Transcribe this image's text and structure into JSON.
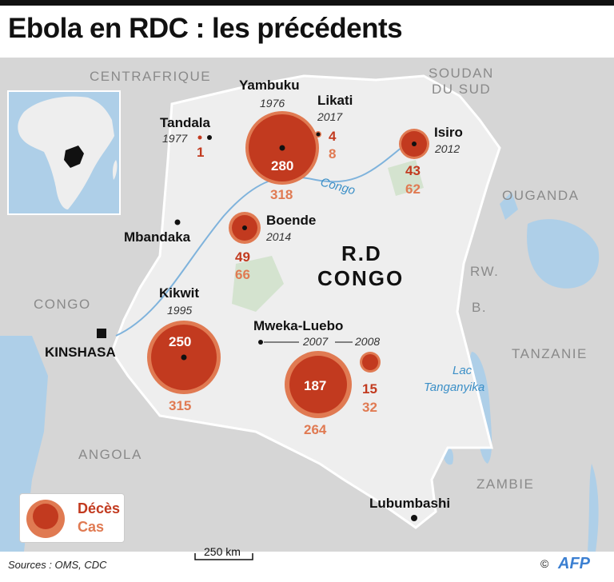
{
  "title": "Ebola en RDC : les précédents",
  "countries": {
    "centrafrique": "CENTRAFRIQUE",
    "soudan_1": "SOUDAN",
    "soudan_2": "DU SUD",
    "ouganda": "OUGANDA",
    "rw": "RW.",
    "b": "B.",
    "tanzanie": "TANZANIE",
    "zambie": "ZAMBIE",
    "angola": "ANGOLA",
    "congo": "CONGO",
    "rdc_1": "R.D",
    "rdc_2": "CONGO"
  },
  "places": {
    "kinshasa": "KINSHASA",
    "mbandaka": "Mbandaka",
    "lubumbashi": "Lubumbashi",
    "river_congo": "Congo",
    "lake_1": "Lac",
    "lake_2": "Tanganyika"
  },
  "outbreaks": [
    {
      "name": "Yambuku",
      "year": "1976",
      "deaths": 280,
      "cases": 318
    },
    {
      "name": "Likati",
      "year": "2017",
      "deaths": 4,
      "cases": 8
    },
    {
      "name": "Tandala",
      "year": "1977",
      "deaths": 1,
      "cases": ""
    },
    {
      "name": "Isiro",
      "year": "2012",
      "deaths": 43,
      "cases": 62
    },
    {
      "name": "Boende",
      "year": "2014",
      "deaths": 49,
      "cases": 66
    },
    {
      "name": "Kikwit",
      "year": "1995",
      "deaths": 250,
      "cases": 315
    },
    {
      "name": "Mweka-Luebo",
      "year_a": "2007",
      "year_b": "2008",
      "deaths_a": 187,
      "cases_a": 264,
      "deaths_b": 15,
      "cases_b": 32
    }
  ],
  "legend": {
    "deaths": "Décès",
    "cases": "Cas"
  },
  "scale": "250 km",
  "sources": "Sources : OMS, CDC",
  "copyright": "©",
  "credit": "AFP",
  "colors": {
    "deaths": "#c23a1f",
    "cases": "#e07a52",
    "water": "#aecfe8",
    "land": "#d9d9d9",
    "rdc": "#eeeeee"
  }
}
